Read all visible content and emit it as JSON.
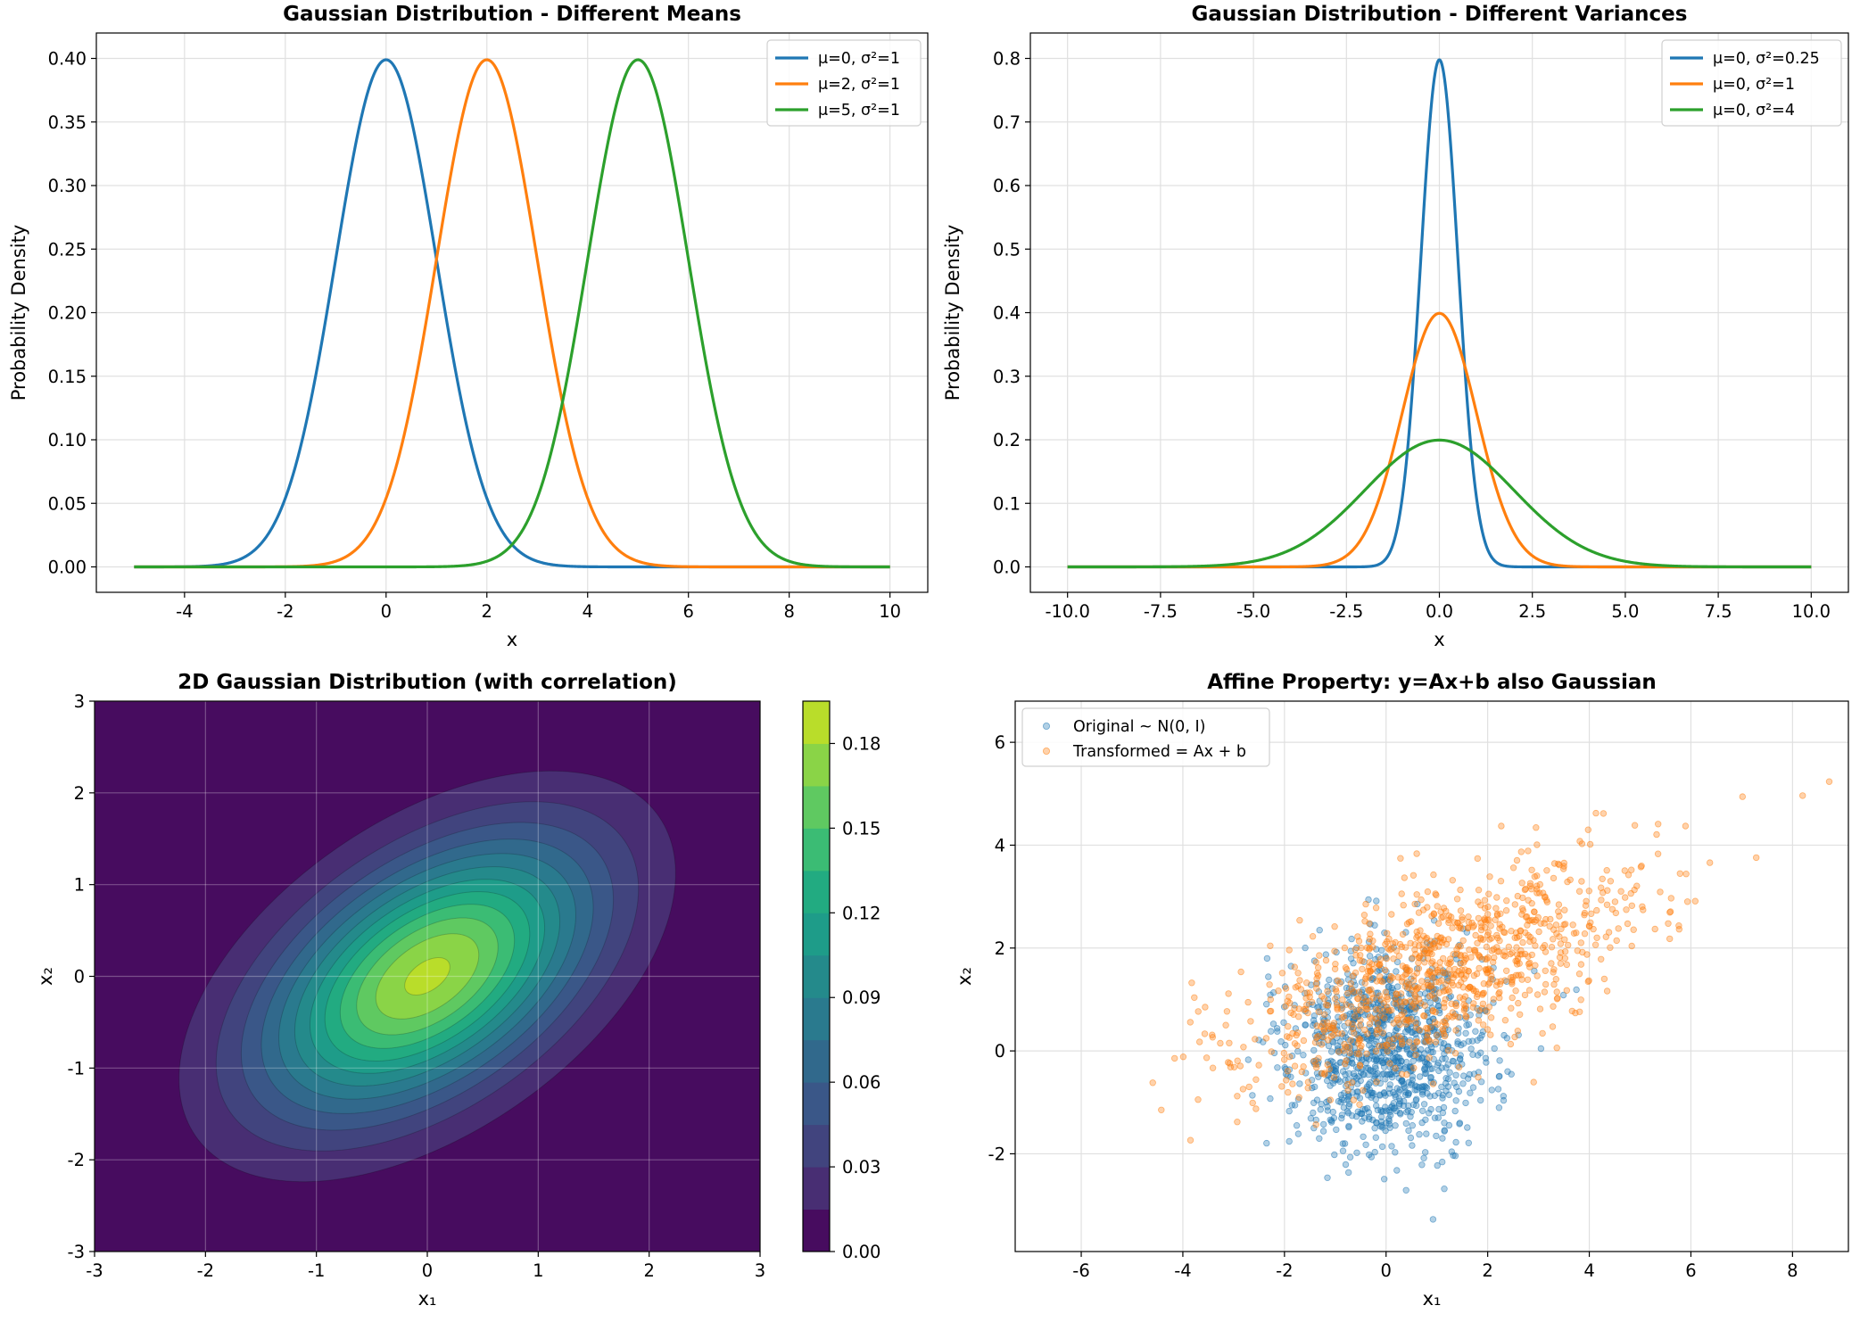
{
  "colors": {
    "blue": "#1f77b4",
    "orange": "#ff7f0e",
    "green": "#2ca02c",
    "grid": "#e0e0e0"
  },
  "chart_data": [
    {
      "type": "line",
      "title": "Gaussian Distribution - Different Means",
      "xlabel": "x",
      "ylabel": "Probability Density",
      "xlim": [
        -5.75,
        10.75
      ],
      "ylim": [
        -0.02,
        0.42
      ],
      "xticks": [
        -4,
        -2,
        0,
        2,
        4,
        6,
        8,
        10
      ],
      "xtick_labels": [
        "-4",
        "-2",
        "0",
        "2",
        "4",
        "6",
        "8",
        "10"
      ],
      "yticks": [
        0,
        0.05,
        0.1,
        0.15,
        0.2,
        0.25,
        0.3,
        0.35,
        0.4
      ],
      "ytick_labels": [
        "0.00",
        "0.05",
        "0.10",
        "0.15",
        "0.20",
        "0.25",
        "0.30",
        "0.35",
        "0.40"
      ],
      "x_range": [
        -5,
        10
      ],
      "grid": true,
      "legend_position": "top-right",
      "series": [
        {
          "name": "μ=0, σ²=1",
          "mu": 0,
          "var": 1,
          "color": "#1f77b4"
        },
        {
          "name": "μ=2, σ²=1",
          "mu": 2,
          "var": 1,
          "color": "#ff7f0e"
        },
        {
          "name": "μ=5, σ²=1",
          "mu": 5,
          "var": 1,
          "color": "#2ca02c"
        }
      ]
    },
    {
      "type": "line",
      "title": "Gaussian Distribution - Different Variances",
      "xlabel": "x",
      "ylabel": "Probability Density",
      "xlim": [
        -11,
        11
      ],
      "ylim": [
        -0.04,
        0.84
      ],
      "xticks": [
        -10,
        -7.5,
        -5,
        -2.5,
        0,
        2.5,
        5,
        7.5,
        10
      ],
      "xtick_labels": [
        "-10.0",
        "-7.5",
        "-5.0",
        "-2.5",
        "0.0",
        "2.5",
        "5.0",
        "7.5",
        "10.0"
      ],
      "yticks": [
        0,
        0.1,
        0.2,
        0.3,
        0.4,
        0.5,
        0.6,
        0.7,
        0.8
      ],
      "ytick_labels": [
        "0.0",
        "0.1",
        "0.2",
        "0.3",
        "0.4",
        "0.5",
        "0.6",
        "0.7",
        "0.8"
      ],
      "x_range": [
        -10,
        10
      ],
      "grid": true,
      "legend_position": "top-right",
      "series": [
        {
          "name": "μ=0, σ²=0.25",
          "mu": 0,
          "var": 0.25,
          "color": "#1f77b4"
        },
        {
          "name": "μ=0, σ²=1",
          "mu": 0,
          "var": 1,
          "color": "#ff7f0e"
        },
        {
          "name": "μ=0, σ²=4",
          "mu": 0,
          "var": 4,
          "color": "#2ca02c"
        }
      ]
    },
    {
      "type": "heatmap",
      "title": "2D Gaussian Distribution (with correlation)",
      "xlabel": "x₁",
      "ylabel": "x₂",
      "xlim": [
        -3,
        3
      ],
      "ylim": [
        -3,
        3
      ],
      "xticks": [
        -3,
        -2,
        -1,
        0,
        1,
        2,
        3
      ],
      "yticks": [
        -3,
        -2,
        -1,
        0,
        1,
        2,
        3
      ],
      "tick_labels": [
        "-3",
        "-2",
        "-1",
        "0",
        "1",
        "2",
        "3"
      ],
      "mean": [
        0,
        0
      ],
      "covariance": [
        [
          1,
          0.5
        ],
        [
          0.5,
          1
        ]
      ],
      "contour_levels": [
        0,
        0.015,
        0.03,
        0.045,
        0.06,
        0.075,
        0.09,
        0.105,
        0.12,
        0.135,
        0.15,
        0.165,
        0.18,
        0.195
      ],
      "level_colors": [
        "#470c5f",
        "#482e73",
        "#41447e",
        "#3a5788",
        "#31698c",
        "#2a7a8e",
        "#248a8b",
        "#1e9c89",
        "#22ab81",
        "#3bbc74",
        "#5fc961",
        "#8ad447",
        "#b9dd2a",
        "#e4e419"
      ],
      "colorbar_ticks": [
        0,
        0.03,
        0.06,
        0.09,
        0.12,
        0.15,
        0.18
      ],
      "colorbar_tick_labels": [
        "0.00",
        "0.03",
        "0.06",
        "0.09",
        "0.12",
        "0.15",
        "0.18"
      ],
      "grid": true
    },
    {
      "type": "scatter",
      "title": "Affine Property: y=Ax+b also Gaussian",
      "xlabel": "x₁",
      "ylabel": "x₂",
      "xlim": [
        -7.3,
        9.1
      ],
      "ylim": [
        -3.9,
        6.8
      ],
      "xticks": [
        -6,
        -4,
        -2,
        0,
        2,
        4,
        6,
        8
      ],
      "xtick_labels": [
        "-6",
        "-4",
        "-2",
        "0",
        "2",
        "4",
        "6",
        "8"
      ],
      "yticks": [
        -2,
        0,
        2,
        4,
        6
      ],
      "ytick_labels": [
        "-2",
        "0",
        "2",
        "4",
        "6"
      ],
      "grid": true,
      "legend_position": "top-left",
      "n_points_per_series": 1000,
      "series": [
        {
          "name": "Original ~ N(0, I)",
          "mean": [
            0,
            0
          ],
          "covariance": [
            [
              1,
              0
            ],
            [
              0,
              1
            ]
          ],
          "color": "#1f77b4",
          "alpha": 0.35
        },
        {
          "name": "Transformed = Ax + b",
          "mean": [
            1,
            1.5
          ],
          "covariance": [
            [
              4.25,
              1.5
            ],
            [
              1.5,
              1.25
            ]
          ],
          "color": "#ff7f0e",
          "alpha": 0.35
        }
      ]
    }
  ]
}
